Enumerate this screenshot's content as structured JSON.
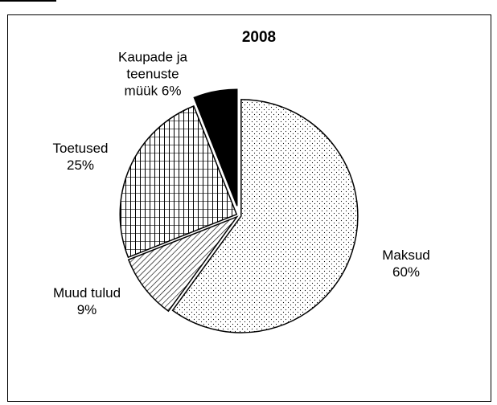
{
  "chart_data": {
    "type": "pie",
    "title": "2008",
    "categories": [
      "Maksud",
      "Muud tulud",
      "Toetused",
      "Kaupade ja teenuste müük"
    ],
    "values": [
      60,
      9,
      25,
      6
    ],
    "value_labels": [
      "60%",
      "9%",
      "25%",
      "6%"
    ],
    "patterns": [
      "dots",
      "diagonal",
      "grid",
      "solid"
    ],
    "exploded": [
      false,
      false,
      false,
      true
    ]
  }
}
